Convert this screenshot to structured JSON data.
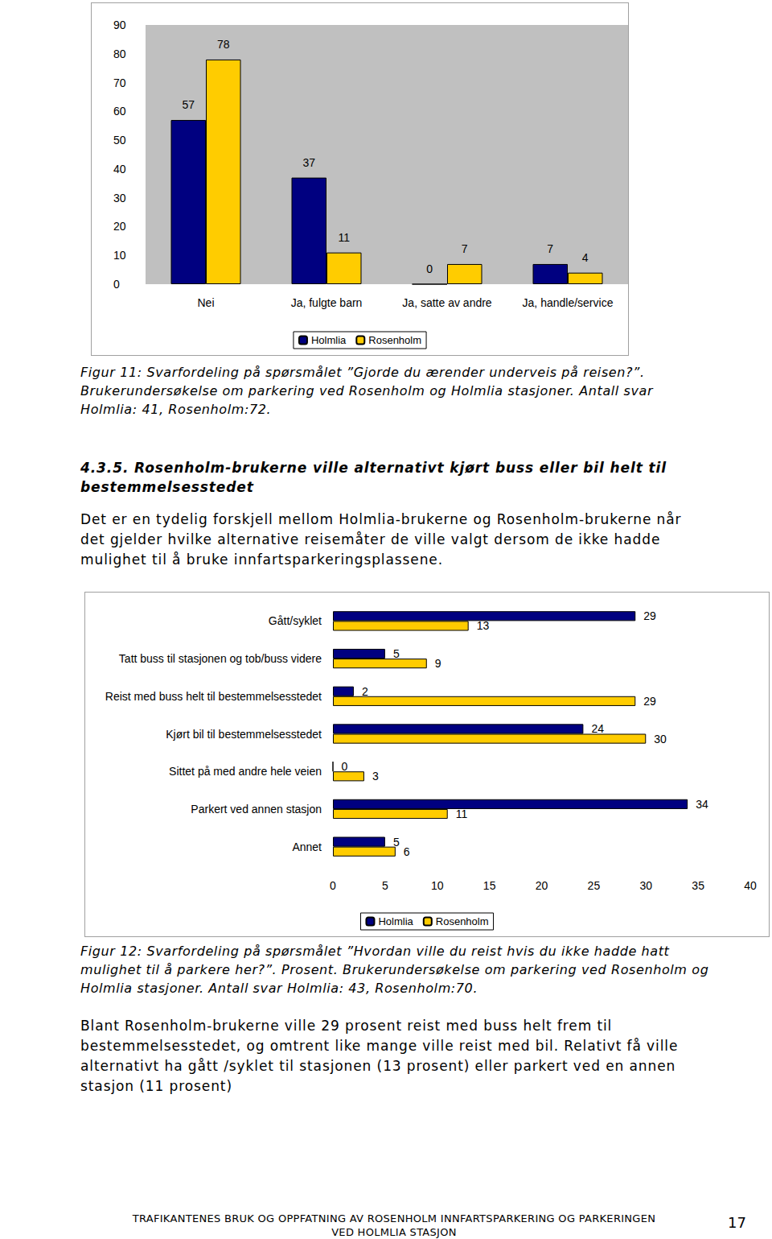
{
  "chart_data": [
    {
      "type": "bar",
      "categories": [
        "Nei",
        "Ja, fulgte barn",
        "Ja, satte av andre",
        "Ja, handle/service"
      ],
      "series": [
        {
          "name": "Holmlia",
          "color": "#000080",
          "values": [
            57,
            37,
            0,
            7
          ]
        },
        {
          "name": "Rosenholm",
          "color": "#ffcc00",
          "values": [
            78,
            11,
            7,
            4
          ]
        }
      ],
      "ylim": [
        0,
        90
      ],
      "yticks": [
        0,
        10,
        20,
        30,
        40,
        50,
        60,
        70,
        80,
        90
      ],
      "grid": false,
      "data_labels": true,
      "legend": "bottom"
    },
    {
      "type": "bar",
      "orientation": "horizontal",
      "categories": [
        "Gått/syklet",
        "Tatt buss til stasjonen og tob/buss videre",
        "Reist med buss helt til bestemmelsesstedet",
        "Kjørt bil til bestemmelsesstedet",
        "Sittet på med andre hele veien",
        "Parkert ved annen stasjon",
        "Annet"
      ],
      "series": [
        {
          "name": "Holmlia",
          "color": "#000080",
          "values": [
            29,
            5,
            2,
            24,
            0,
            34,
            5
          ]
        },
        {
          "name": "Rosenholm",
          "color": "#ffcc00",
          "values": [
            13,
            9,
            29,
            30,
            3,
            11,
            6
          ]
        }
      ],
      "xlim": [
        0,
        40
      ],
      "xticks": [
        0,
        5,
        10,
        15,
        20,
        25,
        30,
        35,
        40
      ],
      "grid": false,
      "data_labels": true,
      "legend": "bottom"
    }
  ],
  "page": {
    "caption_1": [
      "Figur 11: Svarfordeling på spørsmålet ”Gjorde du ærender underveis på reisen?”.",
      "Brukerundersøkelse om parkering ved Rosenholm og Holmlia stasjoner. Antall svar",
      "Holmlia: 41, Rosenholm:72."
    ],
    "heading": [
      "4.3.5.  Rosenholm-brukerne ville alternativt kjørt buss eller bil helt til",
      "bestemmelsesstedet"
    ],
    "paragraph_1": [
      "Det er en tydelig forskjell mellom Holmlia-brukerne og Rosenholm-brukerne når",
      "det gjelder hvilke alternative reisemåter de ville valgt dersom de ikke hadde",
      "mulighet til å bruke innfartsparkeringsplassene."
    ],
    "caption_2": [
      "Figur 12: Svarfordeling på spørsmålet ”Hvordan ville du reist hvis du ikke hadde hatt",
      "mulighet til å parkere her?”. Prosent. Brukerundersøkelse om parkering ved Rosenholm og",
      "Holmlia stasjoner. Antall svar Holmlia: 43, Rosenholm:70."
    ],
    "paragraph_2": [
      "Blant Rosenholm-brukerne ville 29 prosent reist med buss helt frem til",
      "bestemmelsesstedet, og omtrent like mange ville reist med bil. Relativt få ville",
      "alternativt ha gått /syklet til stasjonen (13 prosent) eller parkert ved en annen",
      "stasjon (11 prosent)"
    ],
    "footer": [
      "TRAFIKANTENES BRUK OG OPPFATNING AV ROSENHOLM INNFARTSPARKERING OG PARKERINGEN",
      "VED HOLMLIA STASJON"
    ],
    "page_number": "17"
  }
}
